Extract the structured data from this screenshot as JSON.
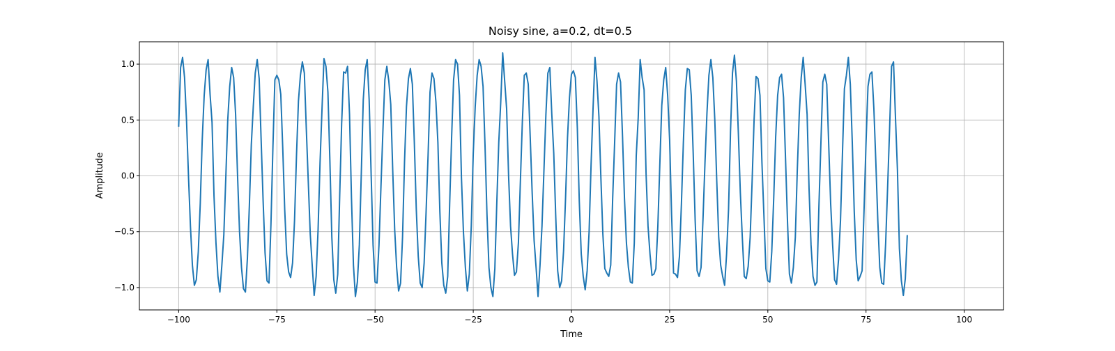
{
  "chart_data": {
    "type": "line",
    "title": "Noisy sine, a=0.2, dt=0.5",
    "xlabel": "Time",
    "ylabel": "Amplitude",
    "xlim": [
      -110,
      110
    ],
    "ylim": [
      -1.2,
      1.2
    ],
    "xticks": [
      -100,
      -75,
      -50,
      -25,
      0,
      25,
      50,
      75,
      100
    ],
    "yticks": [
      -1.0,
      -0.5,
      0.0,
      0.5,
      1.0
    ],
    "xtick_labels": [
      "−100",
      "−75",
      "−50",
      "−25",
      "0",
      "25",
      "50",
      "75",
      "100"
    ],
    "ytick_labels": [
      "−1.0",
      "−0.5",
      "0.0",
      "0.5",
      "1.0"
    ],
    "grid": true,
    "line_color": "#1f77b4",
    "series": [
      {
        "x_start": -100,
        "x_step": 0.5,
        "values": [
          0.44,
          0.97,
          1.06,
          0.88,
          0.5,
          0.0,
          -0.45,
          -0.8,
          -0.98,
          -0.93,
          -0.68,
          -0.25,
          0.32,
          0.72,
          0.95,
          1.04,
          0.73,
          0.48,
          -0.18,
          -0.6,
          -0.9,
          -1.04,
          -0.8,
          -0.53,
          -0.02,
          0.5,
          0.8,
          0.97,
          0.88,
          0.55,
          0.0,
          -0.5,
          -0.82,
          -1.01,
          -1.04,
          -0.74,
          -0.27,
          0.28,
          0.62,
          0.92,
          1.04,
          0.87,
          0.32,
          -0.22,
          -0.69,
          -0.94,
          -0.96,
          -0.43,
          0.26,
          0.86,
          0.9,
          0.86,
          0.73,
          0.25,
          -0.3,
          -0.7,
          -0.86,
          -0.91,
          -0.78,
          -0.4,
          0.18,
          0.67,
          0.9,
          1.02,
          0.92,
          0.42,
          -0.05,
          -0.52,
          -0.8,
          -1.07,
          -0.9,
          -0.48,
          0.12,
          0.6,
          1.05,
          0.98,
          0.75,
          0.14,
          -0.55,
          -0.93,
          -1.05,
          -0.88,
          -0.18,
          0.47,
          0.93,
          0.92,
          0.98,
          0.55,
          -0.2,
          -0.8,
          -1.08,
          -0.95,
          -0.62,
          0.02,
          0.68,
          0.95,
          1.04,
          0.68,
          0.02,
          -0.62,
          -0.95,
          -0.96,
          -0.62,
          -0.1,
          0.4,
          0.86,
          0.98,
          0.85,
          0.64,
          0.05,
          -0.48,
          -0.82,
          -1.03,
          -0.96,
          -0.55,
          0.12,
          0.62,
          0.87,
          0.96,
          0.82,
          0.3,
          -0.3,
          -0.72,
          -0.96,
          -1.0,
          -0.78,
          -0.32,
          0.18,
          0.75,
          0.92,
          0.87,
          0.66,
          0.3,
          -0.32,
          -0.78,
          -0.98,
          -1.05,
          -0.9,
          -0.25,
          0.35,
          0.86,
          1.04,
          1.0,
          0.72,
          -0.02,
          -0.5,
          -0.82,
          -1.03,
          -0.88,
          -0.45,
          0.2,
          0.62,
          0.9,
          1.04,
          0.98,
          0.8,
          0.27,
          -0.35,
          -0.82,
          -1.0,
          -1.08,
          -0.83,
          -0.24,
          0.3,
          0.66,
          1.1,
          0.85,
          0.6,
          0.0,
          -0.45,
          -0.7,
          -0.89,
          -0.86,
          -0.6,
          -0.05,
          0.48,
          0.9,
          0.92,
          0.82,
          0.35,
          -0.15,
          -0.58,
          -0.82,
          -1.08,
          -0.8,
          -0.45,
          0.05,
          0.55,
          0.92,
          0.97,
          0.55,
          0.2,
          -0.36,
          -0.85,
          -1.0,
          -0.94,
          -0.67,
          -0.2,
          0.34,
          0.7,
          0.91,
          0.94,
          0.88,
          0.43,
          -0.23,
          -0.7,
          -0.9,
          -1.02,
          -0.85,
          -0.5,
          0.1,
          0.6,
          1.06,
          0.85,
          0.53,
          -0.02,
          -0.52,
          -0.83,
          -0.87,
          -0.9,
          -0.8,
          -0.2,
          0.3,
          0.82,
          0.92,
          0.84,
          0.36,
          -0.2,
          -0.6,
          -0.82,
          -0.95,
          -0.96,
          -0.6,
          0.18,
          0.52,
          1.04,
          0.88,
          0.77,
          0.02,
          -0.45,
          -0.7,
          -0.89,
          -0.88,
          -0.83,
          -0.45,
          0.1,
          0.63,
          0.86,
          0.97,
          0.72,
          0.32,
          -0.35,
          -0.87,
          -0.88,
          -0.91,
          -0.72,
          -0.25,
          0.3,
          0.77,
          0.96,
          0.95,
          0.72,
          0.2,
          -0.4,
          -0.85,
          -0.9,
          -0.82,
          -0.38,
          0.12,
          0.56,
          0.9,
          1.04,
          0.88,
          0.5,
          -0.05,
          -0.55,
          -0.8,
          -0.9,
          -0.98,
          -0.7,
          -0.3,
          0.4,
          0.92,
          1.08,
          0.85,
          0.38,
          -0.15,
          -0.55,
          -0.9,
          -0.92,
          -0.81,
          -0.55,
          -0.05,
          0.5,
          0.89,
          0.87,
          0.72,
          0.12,
          -0.35,
          -0.83,
          -0.94,
          -0.95,
          -0.68,
          -0.2,
          0.35,
          0.72,
          0.88,
          0.91,
          0.7,
          0.16,
          -0.4,
          -0.88,
          -0.96,
          -0.82,
          -0.55,
          0.05,
          0.55,
          0.88,
          1.06,
          0.82,
          0.55,
          -0.12,
          -0.62,
          -0.9,
          -0.98,
          -0.95,
          -0.28,
          0.28,
          0.84,
          0.91,
          0.82,
          0.28,
          -0.25,
          -0.62,
          -0.93,
          -0.97,
          -0.75,
          -0.4,
          0.2,
          0.78,
          0.9,
          1.06,
          0.82,
          0.3,
          -0.32,
          -0.75,
          -0.94,
          -0.9,
          -0.85,
          -0.3,
          0.3,
          0.8,
          0.91,
          0.93,
          0.6,
          0.12,
          -0.4,
          -0.82,
          -0.96,
          -0.97,
          -0.6,
          -0.1,
          0.42,
          0.98,
          1.02,
          0.52,
          0.05,
          -0.65,
          -0.94,
          -1.07,
          -0.92,
          -0.53
        ]
      }
    ]
  }
}
